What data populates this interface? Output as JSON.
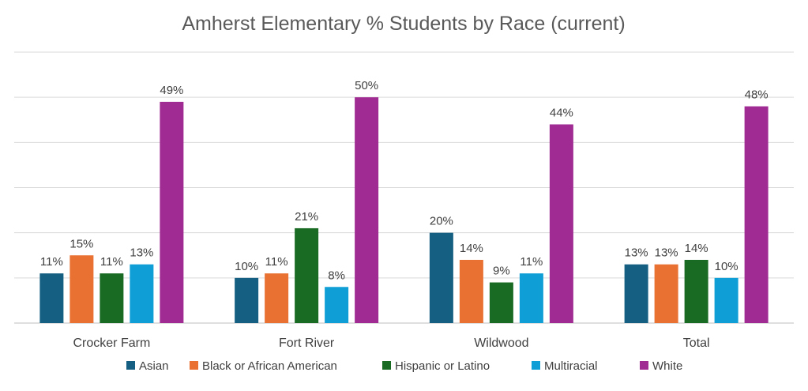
{
  "chart_data": {
    "type": "bar",
    "title": "Amherst Elementary % Students by Race (current)",
    "xlabel": "",
    "ylabel": "",
    "categories": [
      "Crocker Farm",
      "Fort River",
      "Wildwood",
      "Total"
    ],
    "series": [
      {
        "name": "Asian",
        "color": "#156082",
        "values": [
          11,
          10,
          20,
          13
        ],
        "labels": [
          "11%",
          "10%",
          "20%",
          "13%"
        ]
      },
      {
        "name": "Black or African American",
        "color": "#E97132",
        "values": [
          15,
          11,
          14,
          13
        ],
        "labels": [
          "15%",
          "11%",
          "14%",
          "13%"
        ]
      },
      {
        "name": "Hispanic or Latino",
        "color": "#196B24",
        "values": [
          11,
          21,
          9,
          14
        ],
        "labels": [
          "11%",
          "21%",
          "9%",
          "14%"
        ]
      },
      {
        "name": "Multiracial",
        "color": "#0F9ED5",
        "values": [
          13,
          8,
          11,
          10
        ],
        "labels": [
          "13%",
          "8%",
          "11%",
          "10%"
        ]
      },
      {
        "name": "White",
        "color": "#A02B93",
        "values": [
          49,
          50,
          44,
          48
        ],
        "labels": [
          "49%",
          "50%",
          "44%",
          "48%"
        ]
      }
    ],
    "ylim": [
      0,
      60
    ],
    "grid": true,
    "legend_position": "bottom"
  }
}
